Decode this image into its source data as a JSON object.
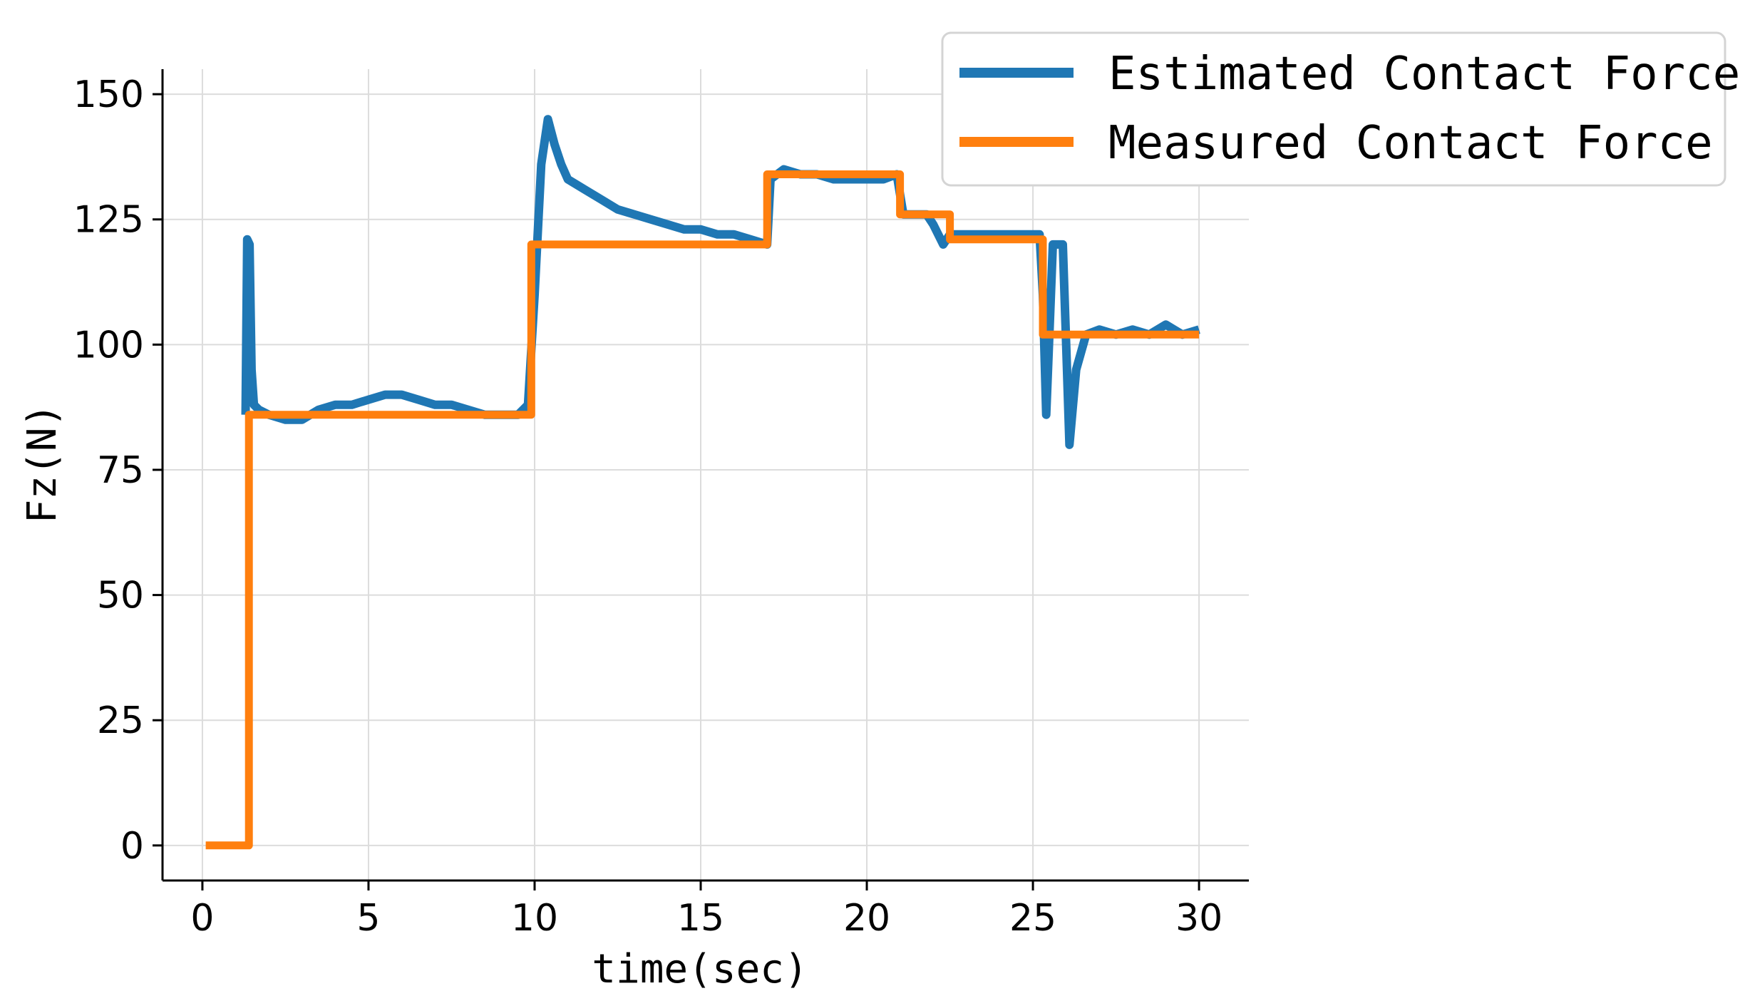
{
  "chart_data": {
    "type": "line",
    "title": "",
    "xlabel": "time(sec)",
    "ylabel": "Fz(N)",
    "xlim": [
      -1.2,
      31.5
    ],
    "ylim": [
      -7,
      155
    ],
    "xticks": [
      0,
      5,
      10,
      15,
      20,
      25,
      30
    ],
    "yticks": [
      0,
      25,
      50,
      75,
      100,
      125,
      150
    ],
    "grid": true,
    "legend_position": "top-right",
    "series": [
      {
        "name": "Estimated Contact Force",
        "color": "#1f77b4",
        "x": [
          1.3,
          1.35,
          1.42,
          1.48,
          1.55,
          1.7,
          2.0,
          2.5,
          3.0,
          3.5,
          4.0,
          4.5,
          5.0,
          5.5,
          6.0,
          6.5,
          7.0,
          7.5,
          8.0,
          8.5,
          9.0,
          9.5,
          9.8,
          10.0,
          10.2,
          10.4,
          10.6,
          10.8,
          11.0,
          11.5,
          12.0,
          12.5,
          13.0,
          13.5,
          14.0,
          14.5,
          15.0,
          15.5,
          16.0,
          16.5,
          17.0,
          17.1,
          17.5,
          18.0,
          18.5,
          19.0,
          19.5,
          20.0,
          20.5,
          20.9,
          21.1,
          21.5,
          21.8,
          22.0,
          22.3,
          22.5,
          23.0,
          23.5,
          24.0,
          24.5,
          25.0,
          25.2,
          25.3,
          25.4,
          25.5,
          25.6,
          25.8,
          25.9,
          26.0,
          26.1,
          26.3,
          26.6,
          27.0,
          27.5,
          28.0,
          28.5,
          29.0,
          29.5,
          30.0
        ],
        "y": [
          86,
          121,
          120,
          95,
          88,
          87,
          86,
          85,
          85,
          87,
          88,
          88,
          89,
          90,
          90,
          89,
          88,
          88,
          87,
          86,
          86,
          86,
          88,
          110,
          136,
          145,
          140,
          136,
          133,
          131,
          129,
          127,
          126,
          125,
          124,
          123,
          123,
          122,
          122,
          121,
          120,
          133,
          135,
          134,
          134,
          133,
          133,
          133,
          133,
          134,
          126,
          126,
          126,
          124,
          120,
          122,
          122,
          122,
          122,
          122,
          122,
          122,
          110,
          86,
          103,
          120,
          120,
          120,
          100,
          80,
          95,
          102,
          103,
          102,
          103,
          102,
          104,
          102,
          103
        ]
      },
      {
        "name": "Measured Contact Force",
        "color": "#ff7f0e",
        "x": [
          0.1,
          1.4,
          1.4,
          9.9,
          9.9,
          17.0,
          17.0,
          21.0,
          21.0,
          22.5,
          22.5,
          25.3,
          25.3,
          30.0
        ],
        "y": [
          0,
          0,
          86,
          86,
          120,
          120,
          134,
          134,
          126,
          126,
          121,
          121,
          102,
          102
        ]
      }
    ]
  }
}
